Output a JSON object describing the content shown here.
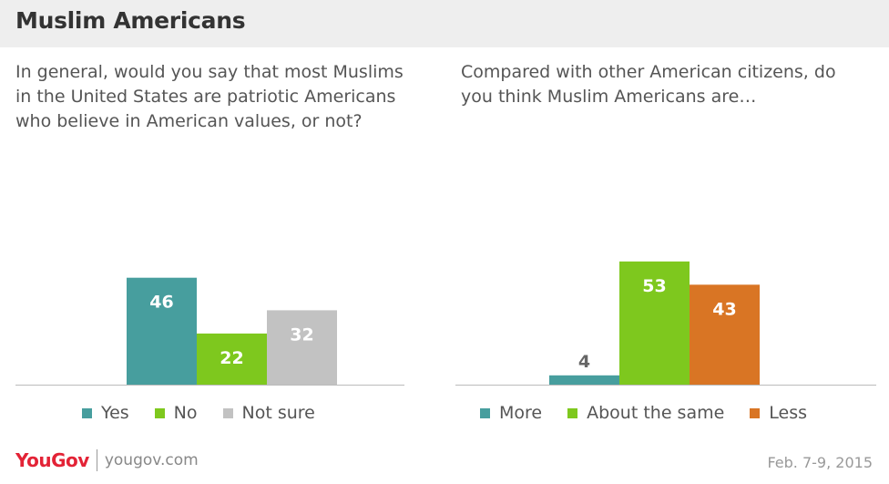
{
  "header": {
    "title": "Muslim Americans"
  },
  "colors": {
    "teal": "#479e9e",
    "green": "#7ec81e",
    "gray": "#c2c2c2",
    "orange": "#d97524"
  },
  "chart_data": [
    {
      "type": "bar",
      "title": "In general, would you say that most Muslims in the United States are patriotic Americans who believe in American values, or not?",
      "categories": [
        "Yes",
        "No",
        "Not sure"
      ],
      "values": [
        46,
        22,
        32
      ],
      "colors": [
        "#479e9e",
        "#7ec81e",
        "#c2c2c2"
      ],
      "label_colors": [
        "#ffffff",
        "#ffffff",
        "#ffffff"
      ],
      "ylim": [
        0,
        60
      ],
      "grid": false,
      "legend_position": "bottom"
    },
    {
      "type": "bar",
      "title": "Compared with other American citizens, do you think Muslim Americans are…",
      "categories": [
        "More",
        "About the same",
        "Less"
      ],
      "values": [
        4,
        53,
        43
      ],
      "colors": [
        "#479e9e",
        "#7ec81e",
        "#d97524"
      ],
      "label_colors": [
        "#666666",
        "#ffffff",
        "#ffffff"
      ],
      "ylim": [
        0,
        60
      ],
      "grid": false,
      "legend_position": "bottom"
    }
  ],
  "footer": {
    "brand": "YouGov",
    "site": "yougov.com",
    "date": "Feb. 7-9, 2015"
  }
}
